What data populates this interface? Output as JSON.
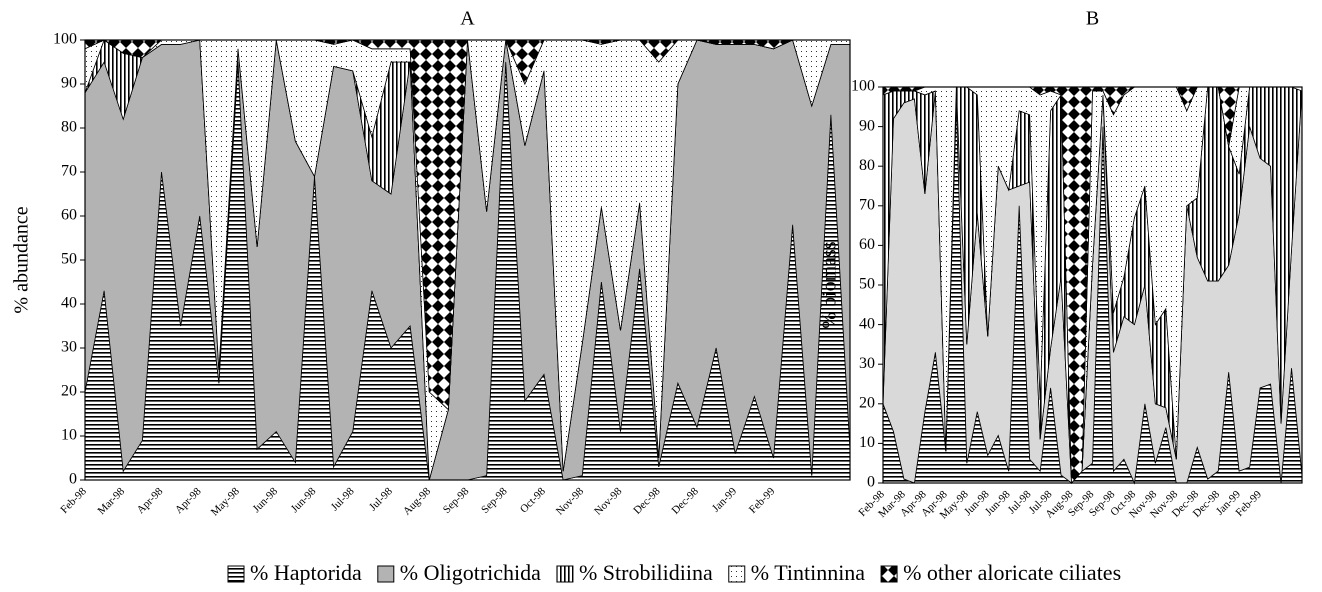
{
  "chart_data": [
    {
      "type": "area",
      "stacked": true,
      "title": "A",
      "y_label": "% abundance",
      "categories": [
        "Feb-98",
        null,
        "Mar-98",
        null,
        "Apr-98",
        null,
        "Apr-98",
        null,
        "May-98",
        null,
        "Jun-98",
        null,
        "Jun-98",
        null,
        "Jul-98",
        null,
        "Jul-98",
        null,
        "Aug-98",
        null,
        "Sep-98",
        null,
        "Sep-98",
        null,
        "Oct-98",
        null,
        "Nov-98",
        null,
        "Nov-98",
        null,
        "Dec-98",
        null,
        "Dec-98",
        null,
        "Jan-99",
        null,
        "Feb-99",
        null,
        null,
        null,
        null
      ],
      "ylim": [
        0,
        100
      ],
      "yticks": [
        0,
        10,
        20,
        30,
        40,
        50,
        60,
        70,
        80,
        90,
        100
      ],
      "series": [
        {
          "name": "% Haptorida",
          "color": "#ffffff",
          "pattern": "horizontal",
          "values": [
            20,
            43,
            2,
            9,
            70,
            35,
            60,
            22,
            95,
            7,
            11,
            4,
            69,
            3,
            11,
            43,
            30,
            35,
            0,
            0,
            0,
            1,
            95,
            18,
            24,
            0,
            1,
            45,
            11,
            48,
            3,
            22,
            12,
            30,
            6,
            19,
            5,
            58,
            1,
            83,
            7
          ]
        },
        {
          "name": "% Oligotrichida",
          "color": "#b3b3b3",
          "pattern": "solid",
          "values": [
            68,
            52,
            80,
            87,
            29,
            64,
            40,
            3,
            3,
            46,
            89,
            73,
            0,
            91,
            82,
            25,
            35,
            60,
            0,
            16,
            100,
            60,
            5,
            58,
            69,
            2,
            30,
            17,
            23,
            15,
            2,
            68,
            88,
            69,
            93,
            80,
            93,
            42,
            84,
            16,
            92
          ]
        },
        {
          "name": "% Strobilidiina",
          "color": "#ffffff",
          "pattern": "vertical",
          "values": [
            0,
            5,
            15,
            0,
            0,
            0,
            0,
            0,
            0,
            0,
            0,
            0,
            0,
            0,
            0,
            10,
            30,
            0,
            0,
            0,
            0,
            0,
            0,
            0,
            0,
            0,
            0,
            0,
            0,
            0,
            0,
            0,
            0,
            0,
            0,
            0,
            0,
            0,
            0,
            0,
            0
          ]
        },
        {
          "name": "% Tintinnina",
          "color": "#ffffff",
          "pattern": "dots",
          "values": [
            10,
            0,
            0,
            0,
            1,
            1,
            0,
            75,
            2,
            47,
            0,
            23,
            31,
            5,
            7,
            20,
            3,
            3,
            20,
            0,
            0,
            39,
            0,
            14,
            7,
            98,
            69,
            37,
            66,
            37,
            90,
            10,
            0,
            0,
            0,
            0,
            0,
            0,
            15,
            1,
            1
          ]
        },
        {
          "name": "% other aloricate ciliates",
          "color": "#ffffff",
          "pattern": "diamonds",
          "values": [
            2,
            0,
            3,
            4,
            0,
            0,
            0,
            0,
            0,
            0,
            0,
            0,
            0,
            1,
            0,
            2,
            2,
            2,
            80,
            84,
            0,
            0,
            0,
            10,
            0,
            0,
            0,
            1,
            0,
            0,
            5,
            0,
            0,
            1,
            1,
            1,
            2,
            0,
            0,
            0,
            0
          ]
        }
      ]
    },
    {
      "type": "area",
      "stacked": true,
      "title": "B",
      "y_label": "% biomass",
      "categories": [
        "Feb-98",
        null,
        "Mar-98",
        null,
        "Apr-98",
        null,
        "Apr-98",
        null,
        "May-98",
        null,
        "Jun-98",
        null,
        "Jun-98",
        null,
        "Jul-98",
        null,
        "Jul-98",
        null,
        "Aug-98",
        null,
        "Sep-98",
        null,
        "Sep-98",
        null,
        "Oct-98",
        null,
        "Nov-98",
        null,
        "Nov-98",
        null,
        "Dec-98",
        null,
        "Dec-98",
        null,
        "Jan-99",
        null,
        "Feb-99",
        null,
        null,
        null,
        null
      ],
      "ylim": [
        0,
        100
      ],
      "yticks": [
        0,
        10,
        20,
        30,
        40,
        50,
        60,
        70,
        80,
        90,
        100
      ],
      "series": [
        {
          "color": "#ffffff",
          "pattern": "horizontal",
          "values": [
            20,
            13,
            1,
            0,
            18,
            33,
            8,
            96,
            5,
            18,
            7,
            12,
            3,
            70,
            6,
            3,
            24,
            2,
            0,
            3,
            5,
            90,
            3,
            6,
            0,
            20,
            5,
            14,
            0,
            0,
            9,
            1,
            3,
            28,
            3,
            4,
            24,
            25,
            0,
            29,
            2
          ]
        },
        {
          "color": "#d9d9d9",
          "pattern": "solid",
          "values": [
            0,
            79,
            95,
            97,
            55,
            66,
            0,
            4,
            30,
            50,
            30,
            68,
            71,
            5,
            70,
            8,
            10,
            50,
            0,
            0,
            50,
            8,
            30,
            36,
            40,
            30,
            15,
            5,
            6,
            70,
            48,
            50,
            48,
            27,
            65,
            86,
            58,
            55,
            15,
            30,
            97
          ]
        },
        {
          "color": "#ffffff",
          "pattern": "vertical",
          "values": [
            78,
            7,
            3,
            2,
            25,
            0,
            0,
            0,
            65,
            30,
            0,
            0,
            0,
            19,
            17,
            10,
            60,
            46,
            0,
            0,
            0,
            0,
            10,
            10,
            27,
            25,
            20,
            25,
            0,
            0,
            15,
            49,
            49,
            30,
            10,
            10,
            18,
            20,
            85,
            41,
            0
          ]
        },
        {
          "color": "#ffffff",
          "pattern": "dots",
          "values": [
            0,
            0,
            0,
            0,
            2,
            1,
            92,
            0,
            0,
            2,
            63,
            20,
            26,
            6,
            7,
            77,
            5,
            0,
            0,
            0,
            44,
            1,
            50,
            46,
            33,
            25,
            60,
            56,
            94,
            24,
            28,
            0,
            0,
            0,
            22,
            0,
            0,
            0,
            0,
            0,
            1
          ]
        },
        {
          "color": "#ffffff",
          "pattern": "diamonds",
          "values": [
            2,
            1,
            1,
            1,
            0,
            0,
            0,
            0,
            0,
            0,
            0,
            0,
            0,
            0,
            0,
            2,
            1,
            2,
            100,
            97,
            1,
            1,
            7,
            2,
            0,
            0,
            0,
            0,
            0,
            6,
            0,
            0,
            0,
            15,
            0,
            0,
            0,
            0,
            0,
            0,
            0
          ]
        }
      ]
    }
  ]
}
